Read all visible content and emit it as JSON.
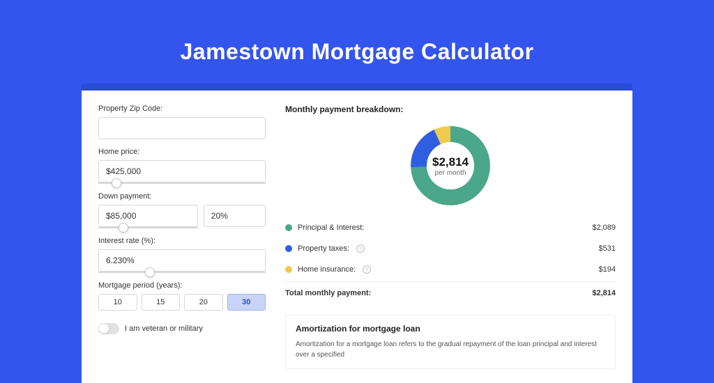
{
  "page": {
    "title": "Jamestown Mortgage Calculator",
    "background_color": "#3355ee",
    "card_wrap_color": "#294bd6",
    "card_background": "#ffffff"
  },
  "form": {
    "zip": {
      "label": "Property Zip Code:",
      "value": ""
    },
    "home_price": {
      "label": "Home price:",
      "value": "$425,000",
      "slider_pct": 8
    },
    "down_payment": {
      "label": "Down payment:",
      "amount": "$85,000",
      "pct": "20%",
      "slider_pct": 20
    },
    "interest_rate": {
      "label": "Interest rate (%):",
      "value": "6.230%",
      "slider_pct": 28
    },
    "period": {
      "label": "Mortgage period (years):",
      "options": [
        "10",
        "15",
        "20",
        "30"
      ],
      "active_index": 3
    },
    "veteran": {
      "label": "I am veteran or military",
      "checked": false
    }
  },
  "breakdown": {
    "title": "Monthly payment breakdown:",
    "donut": {
      "center_amount": "$2,814",
      "center_sub": "per month",
      "segments": [
        {
          "label": "Principal & Interest:",
          "value": "$2,089",
          "num": 2089,
          "color": "#4aa789",
          "has_info": false
        },
        {
          "label": "Property taxes:",
          "value": "$531",
          "num": 531,
          "color": "#2f5fe0",
          "has_info": true
        },
        {
          "label": "Home insurance:",
          "value": "$194",
          "num": 194,
          "color": "#f0c94f",
          "has_info": true
        }
      ],
      "ring_width": 22
    },
    "total": {
      "label": "Total monthly payment:",
      "value": "$2,814"
    }
  },
  "amortization": {
    "title": "Amortization for mortgage loan",
    "text": "Amortization for a mortgage loan refers to the gradual repayment of the loan principal and interest over a specified"
  }
}
